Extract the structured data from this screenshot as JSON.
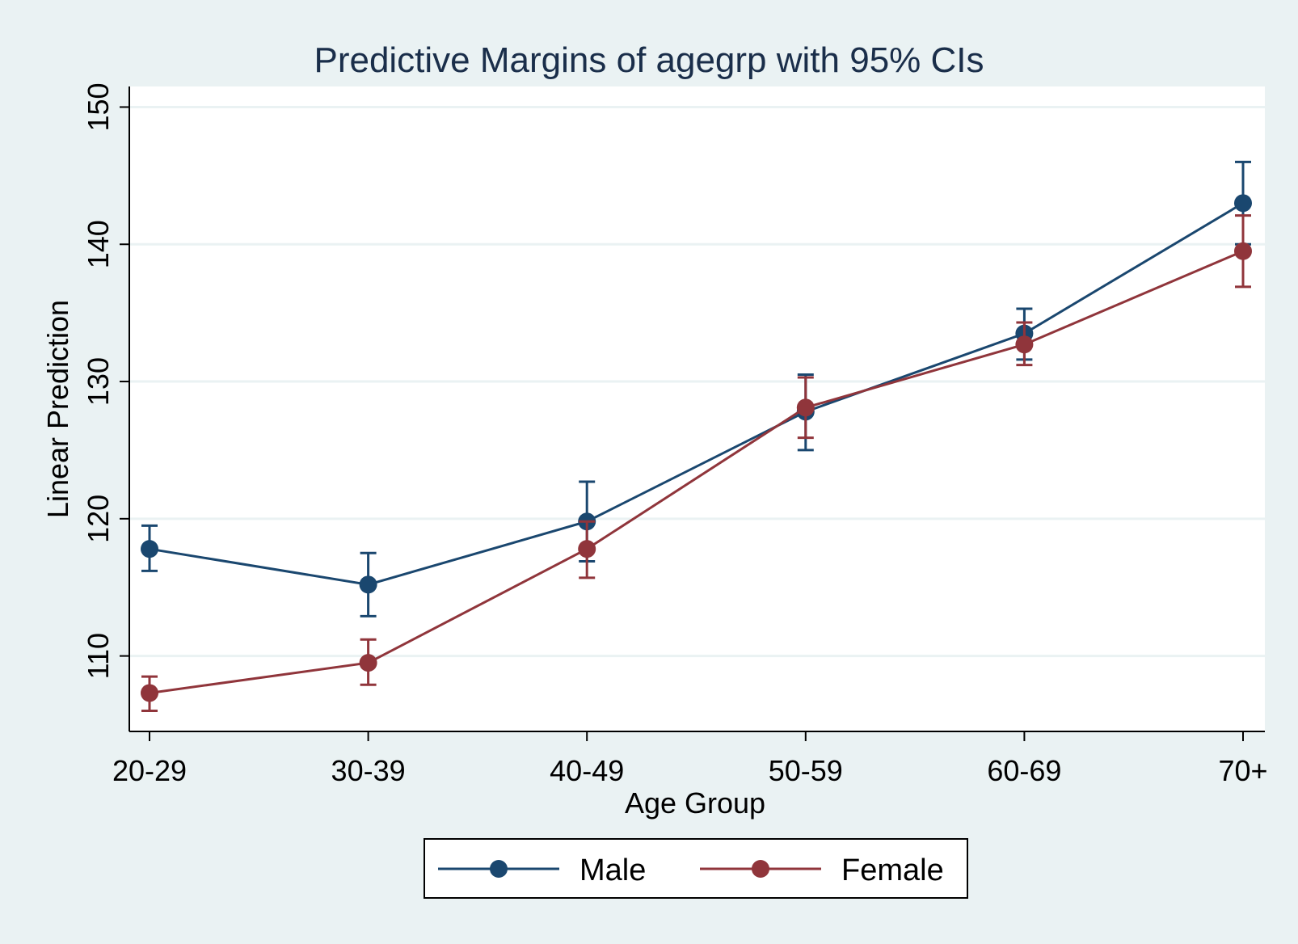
{
  "chart_data": {
    "type": "line",
    "title": "Predictive Margins of agegrp with 95% CIs",
    "xlabel": "Age Group",
    "ylabel": "Linear Prediction",
    "categories": [
      "20-29",
      "30-39",
      "40-49",
      "50-59",
      "60-69",
      "70+"
    ],
    "ylim": [
      104.5,
      151.5
    ],
    "yticks": [
      110,
      120,
      130,
      140,
      150
    ],
    "grid": true,
    "legend_position": "bottom",
    "background": "#eaf2f3",
    "plot_background": "#ffffff",
    "gridline_color": "#eaf2f3",
    "series": [
      {
        "name": "Male",
        "color": "#1a476f",
        "values": [
          117.8,
          115.2,
          119.8,
          127.8,
          133.5,
          143.0
        ],
        "ci_low": [
          116.2,
          112.9,
          116.9,
          125.0,
          131.6,
          140.0
        ],
        "ci_high": [
          119.5,
          117.5,
          122.7,
          130.5,
          135.3,
          146.0
        ]
      },
      {
        "name": "Female",
        "color": "#90353b",
        "values": [
          107.3,
          109.5,
          117.8,
          128.1,
          132.7,
          139.5
        ],
        "ci_low": [
          106.0,
          107.9,
          115.7,
          125.9,
          131.2,
          136.9
        ],
        "ci_high": [
          108.5,
          111.2,
          119.8,
          130.3,
          134.3,
          142.1
        ]
      }
    ]
  }
}
